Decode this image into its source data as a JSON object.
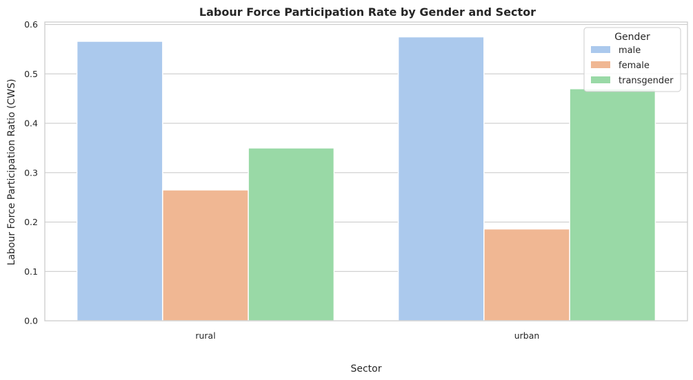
{
  "chart_data": {
    "type": "bar",
    "title": "Labour Force Participation Rate by Gender and Sector",
    "xlabel": "Sector",
    "ylabel": "Labour Force Participation Ratio (CWS)",
    "categories": [
      "rural",
      "urban"
    ],
    "series": [
      {
        "name": "male",
        "values": [
          0.566,
          0.575
        ],
        "color": "#abc9ed"
      },
      {
        "name": "female",
        "values": [
          0.265,
          0.186
        ],
        "color": "#f0b793"
      },
      {
        "name": "transgender",
        "values": [
          0.35,
          0.47
        ],
        "color": "#99d9a6"
      }
    ],
    "ylim": [
      0,
      0.605
    ],
    "yticks": [
      0.0,
      0.1,
      0.2,
      0.3,
      0.4,
      0.5,
      0.6
    ],
    "ytick_labels": [
      "0.0",
      "0.1",
      "0.2",
      "0.3",
      "0.4",
      "0.5",
      "0.6"
    ],
    "grid": true,
    "legend": {
      "title": "Gender",
      "placement": "top-right"
    }
  }
}
